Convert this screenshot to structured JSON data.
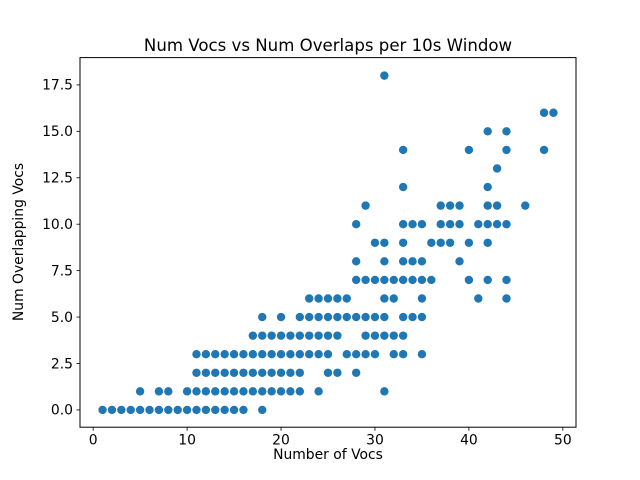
{
  "chart_data": {
    "type": "scatter",
    "title": "Num Vocs vs Num Overlaps per 10s Window",
    "xlabel": "Number of Vocs",
    "ylabel": "Num Overlapping Vocs",
    "xlim": [
      -1.4,
      51.4
    ],
    "ylim": [
      -0.93,
      18.97
    ],
    "x_ticks": {
      "values": [
        0,
        10,
        20,
        30,
        40,
        50
      ],
      "labels": [
        "0",
        "10",
        "20",
        "30",
        "40",
        "50"
      ]
    },
    "y_ticks": {
      "values": [
        0.0,
        2.5,
        5.0,
        7.5,
        10.0,
        12.5,
        15.0,
        17.5
      ],
      "labels": [
        "0.0",
        "2.5",
        "5.0",
        "7.5",
        "10.0",
        "12.5",
        "15.0",
        "17.5"
      ]
    },
    "grid": false,
    "legend": "none",
    "marker_color": "#1f77b4",
    "axes_color": "#000000",
    "background_color": "#ffffff",
    "points": [
      [
        1,
        0
      ],
      [
        2,
        0
      ],
      [
        3,
        0
      ],
      [
        4,
        0
      ],
      [
        5,
        0
      ],
      [
        6,
        0
      ],
      [
        7,
        0
      ],
      [
        8,
        0
      ],
      [
        9,
        0
      ],
      [
        10,
        0
      ],
      [
        11,
        0
      ],
      [
        12,
        0
      ],
      [
        13,
        0
      ],
      [
        14,
        0
      ],
      [
        15,
        0
      ],
      [
        16,
        0
      ],
      [
        18,
        0
      ],
      [
        5,
        1
      ],
      [
        7,
        1
      ],
      [
        8,
        1
      ],
      [
        10,
        1
      ],
      [
        11,
        1
      ],
      [
        12,
        1
      ],
      [
        13,
        1
      ],
      [
        14,
        1
      ],
      [
        15,
        1
      ],
      [
        16,
        1
      ],
      [
        17,
        1
      ],
      [
        18,
        1
      ],
      [
        19,
        1
      ],
      [
        20,
        1
      ],
      [
        21,
        1
      ],
      [
        22,
        1
      ],
      [
        24,
        1
      ],
      [
        31,
        1
      ],
      [
        11,
        2
      ],
      [
        12,
        2
      ],
      [
        13,
        2
      ],
      [
        14,
        2
      ],
      [
        15,
        2
      ],
      [
        16,
        2
      ],
      [
        17,
        2
      ],
      [
        18,
        2
      ],
      [
        19,
        2
      ],
      [
        20,
        2
      ],
      [
        21,
        2
      ],
      [
        22,
        2
      ],
      [
        25,
        2
      ],
      [
        26,
        2
      ],
      [
        28,
        2
      ],
      [
        11,
        3
      ],
      [
        12,
        3
      ],
      [
        13,
        3
      ],
      [
        14,
        3
      ],
      [
        15,
        3
      ],
      [
        16,
        3
      ],
      [
        17,
        3
      ],
      [
        18,
        3
      ],
      [
        19,
        3
      ],
      [
        20,
        3
      ],
      [
        21,
        3
      ],
      [
        22,
        3
      ],
      [
        23,
        3
      ],
      [
        24,
        3
      ],
      [
        25,
        3
      ],
      [
        27,
        3
      ],
      [
        28,
        3
      ],
      [
        29,
        3
      ],
      [
        30,
        3
      ],
      [
        32,
        3
      ],
      [
        33,
        3
      ],
      [
        35,
        3
      ],
      [
        17,
        4
      ],
      [
        18,
        4
      ],
      [
        19,
        4
      ],
      [
        20,
        4
      ],
      [
        21,
        4
      ],
      [
        22,
        4
      ],
      [
        23,
        4
      ],
      [
        24,
        4
      ],
      [
        25,
        4
      ],
      [
        26,
        4
      ],
      [
        29,
        4
      ],
      [
        30,
        4
      ],
      [
        31,
        4
      ],
      [
        32,
        4
      ],
      [
        33,
        4
      ],
      [
        18,
        5
      ],
      [
        20,
        5
      ],
      [
        22,
        5
      ],
      [
        23,
        5
      ],
      [
        24,
        5
      ],
      [
        25,
        5
      ],
      [
        26,
        5
      ],
      [
        27,
        5
      ],
      [
        28,
        5
      ],
      [
        29,
        5
      ],
      [
        30,
        5
      ],
      [
        31,
        5
      ],
      [
        33,
        5
      ],
      [
        34,
        5
      ],
      [
        35,
        5
      ],
      [
        23,
        6
      ],
      [
        24,
        6
      ],
      [
        25,
        6
      ],
      [
        26,
        6
      ],
      [
        27,
        6
      ],
      [
        31,
        6
      ],
      [
        32,
        6
      ],
      [
        35,
        6
      ],
      [
        41,
        6
      ],
      [
        44,
        6
      ],
      [
        28,
        7
      ],
      [
        29,
        7
      ],
      [
        30,
        7
      ],
      [
        31,
        7
      ],
      [
        32,
        7
      ],
      [
        33,
        7
      ],
      [
        34,
        7
      ],
      [
        35,
        7
      ],
      [
        36,
        7
      ],
      [
        40,
        7
      ],
      [
        42,
        7
      ],
      [
        44,
        7
      ],
      [
        28,
        8
      ],
      [
        31,
        8
      ],
      [
        33,
        8
      ],
      [
        34,
        8
      ],
      [
        35,
        8
      ],
      [
        39,
        8
      ],
      [
        30,
        9
      ],
      [
        31,
        9
      ],
      [
        33,
        9
      ],
      [
        36,
        9
      ],
      [
        37,
        9
      ],
      [
        38,
        9
      ],
      [
        40,
        9
      ],
      [
        42,
        9
      ],
      [
        28,
        10
      ],
      [
        33,
        10
      ],
      [
        34,
        10
      ],
      [
        35,
        10
      ],
      [
        37,
        10
      ],
      [
        38,
        10
      ],
      [
        39,
        10
      ],
      [
        41,
        10
      ],
      [
        42,
        10
      ],
      [
        43,
        10
      ],
      [
        44,
        10
      ],
      [
        29,
        11
      ],
      [
        37,
        11
      ],
      [
        38,
        11
      ],
      [
        39,
        11
      ],
      [
        42,
        11
      ],
      [
        43,
        11
      ],
      [
        46,
        11
      ],
      [
        33,
        12
      ],
      [
        42,
        12
      ],
      [
        43,
        13
      ],
      [
        33,
        14
      ],
      [
        40,
        14
      ],
      [
        44,
        14
      ],
      [
        48,
        14
      ],
      [
        42,
        15
      ],
      [
        44,
        15
      ],
      [
        48,
        16
      ],
      [
        49,
        16
      ],
      [
        31,
        18
      ]
    ]
  }
}
